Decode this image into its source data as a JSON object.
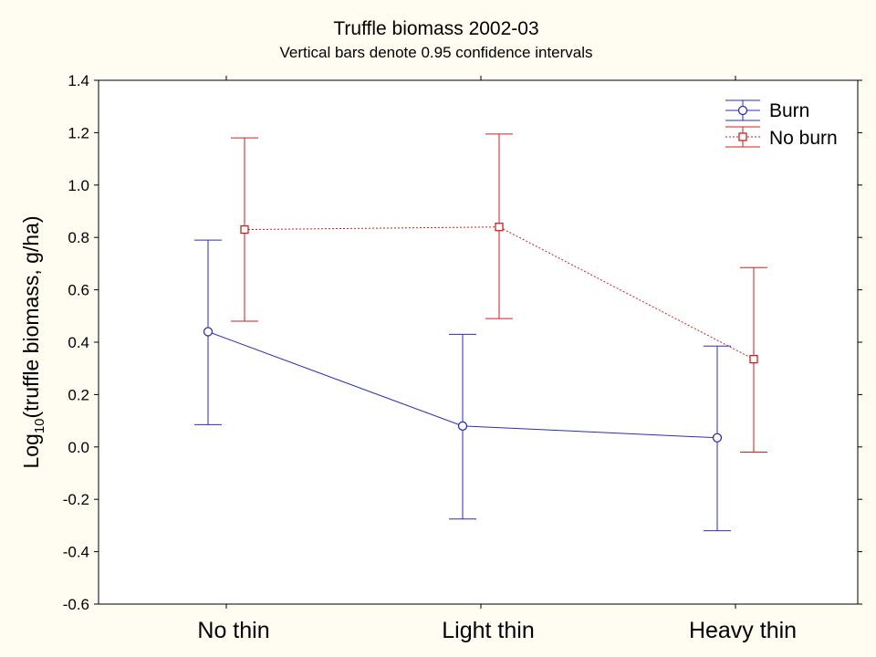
{
  "colors": {
    "background": "#fffdf2",
    "plot_background": "#ffffff",
    "burn": "#2d2db4",
    "no_burn": "#d21e1e"
  },
  "chart_data": {
    "type": "line",
    "title": "Truffle biomass 2002-03",
    "subtitle": "Vertical bars denote 0.95 confidence intervals",
    "ylabel_main": "Log",
    "ylabel_sub": "10",
    "ylabel_rest": "(truffle biomass, g/ha)",
    "xlabel": "",
    "categories": [
      "No thin",
      "Light thin",
      "Heavy thin"
    ],
    "ylim": [
      -0.6,
      1.4
    ],
    "yticks": [
      -0.6,
      -0.4,
      -0.2,
      0.0,
      0.2,
      0.4,
      0.6,
      0.8,
      1.0,
      1.2,
      1.4
    ],
    "ytick_labels": [
      "-0.6",
      "-0.4",
      "-0.2",
      "0.0",
      "0.2",
      "0.4",
      "0.6",
      "0.8",
      "1.0",
      "1.2",
      "1.4"
    ],
    "grid": false,
    "legend_position": "top-right",
    "series": [
      {
        "name": "Burn",
        "marker": "circle",
        "line_style": "solid",
        "color": "#2d2db4",
        "values": [
          0.44,
          0.08,
          0.035
        ],
        "ci_low": [
          0.085,
          -0.275,
          -0.32
        ],
        "ci_high": [
          0.79,
          0.43,
          0.385
        ]
      },
      {
        "name": "No burn",
        "marker": "square",
        "line_style": "dotted",
        "color": "#d21e1e",
        "values": [
          0.83,
          0.84,
          0.335
        ],
        "ci_low": [
          0.48,
          0.49,
          -0.02
        ],
        "ci_high": [
          1.18,
          1.195,
          0.685
        ]
      }
    ]
  }
}
